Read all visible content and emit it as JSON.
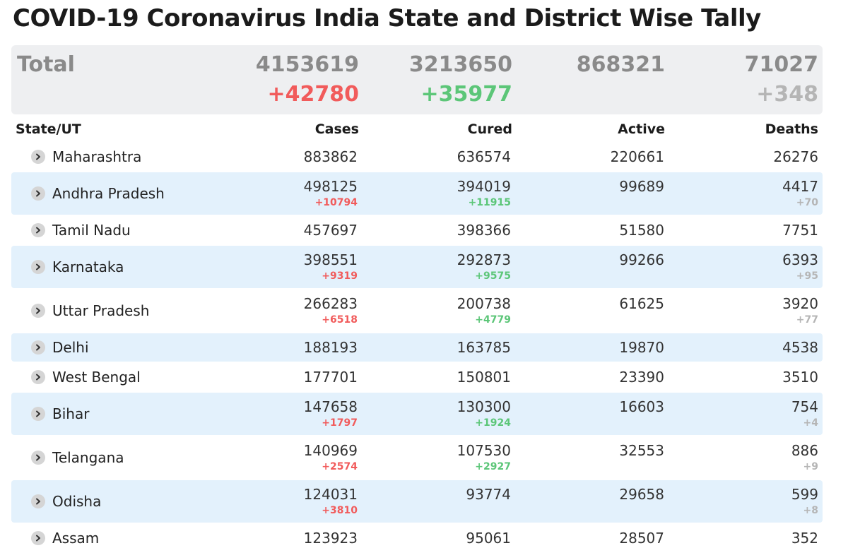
{
  "page": {
    "title": "COVID-19 Coronavirus India State and District Wise Tally"
  },
  "total": {
    "label": "Total",
    "cases": "4153619",
    "cases_delta": "+42780",
    "cured": "3213650",
    "cured_delta": "+35977",
    "active": "868321",
    "deaths": "71027",
    "deaths_delta": "+348"
  },
  "headers": {
    "state": "State/UT",
    "cases": "Cases",
    "cured": "Cured",
    "active": "Active",
    "deaths": "Deaths"
  },
  "colors": {
    "delta_cases": "#f15b5b",
    "delta_cured": "#5cc678",
    "delta_deaths": "#b5b5b5",
    "row_shade": "#e3f1fc",
    "total_bg": "#eeeff1"
  },
  "rows": [
    {
      "state": "Maharashtra",
      "cases": "883862",
      "cured": "636574",
      "active": "220661",
      "deaths": "26276"
    },
    {
      "state": "Andhra Pradesh",
      "cases": "498125",
      "cases_delta": "+10794",
      "cured": "394019",
      "cured_delta": "+11915",
      "active": "99689",
      "deaths": "4417",
      "deaths_delta": "+70"
    },
    {
      "state": "Tamil Nadu",
      "cases": "457697",
      "cured": "398366",
      "active": "51580",
      "deaths": "7751"
    },
    {
      "state": "Karnataka",
      "cases": "398551",
      "cases_delta": "+9319",
      "cured": "292873",
      "cured_delta": "+9575",
      "active": "99266",
      "deaths": "6393",
      "deaths_delta": "+95"
    },
    {
      "state": "Uttar Pradesh",
      "cases": "266283",
      "cases_delta": "+6518",
      "cured": "200738",
      "cured_delta": "+4779",
      "active": "61625",
      "deaths": "3920",
      "deaths_delta": "+77"
    },
    {
      "state": "Delhi",
      "cases": "188193",
      "cured": "163785",
      "active": "19870",
      "deaths": "4538"
    },
    {
      "state": "West Bengal",
      "cases": "177701",
      "cured": "150801",
      "active": "23390",
      "deaths": "3510"
    },
    {
      "state": "Bihar",
      "cases": "147658",
      "cases_delta": "+1797",
      "cured": "130300",
      "cured_delta": "+1924",
      "active": "16603",
      "deaths": "754",
      "deaths_delta": "+4"
    },
    {
      "state": "Telangana",
      "cases": "140969",
      "cases_delta": "+2574",
      "cured": "107530",
      "cured_delta": "+2927",
      "active": "32553",
      "deaths": "886",
      "deaths_delta": "+9"
    },
    {
      "state": "Odisha",
      "cases": "124031",
      "cases_delta": "+3810",
      "cured": "93774",
      "active": "29658",
      "deaths": "599",
      "deaths_delta": "+8"
    },
    {
      "state": "Assam",
      "cases": "123923",
      "cured": "95061",
      "active": "28507",
      "deaths": "352"
    }
  ]
}
